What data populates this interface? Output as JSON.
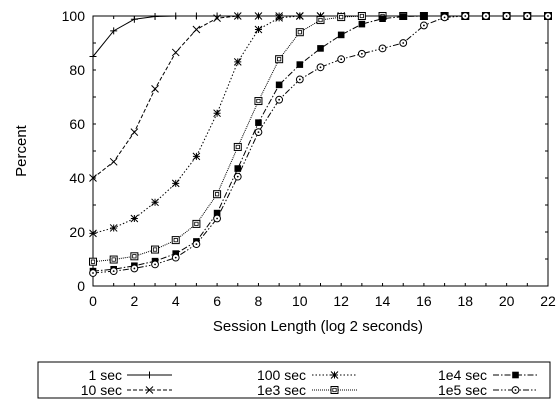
{
  "chart_data": {
    "type": "line",
    "xlabel": "Session Length (log 2 seconds)",
    "ylabel": "Percent",
    "xlim": [
      0,
      22
    ],
    "ylim": [
      0,
      100
    ],
    "x_ticks": [
      0,
      2,
      4,
      6,
      8,
      10,
      12,
      14,
      16,
      18,
      20,
      22
    ],
    "y_ticks": [
      0,
      20,
      40,
      60,
      80,
      100
    ],
    "grid": false,
    "legend_position": "bottom",
    "x": [
      0,
      1,
      2,
      3,
      4,
      5,
      6,
      7,
      8,
      9,
      10,
      11,
      12,
      13,
      14,
      15,
      16,
      17,
      18,
      19,
      20,
      21,
      22
    ],
    "series": [
      {
        "name": "1 sec",
        "marker": "plus",
        "dash": "solid",
        "values": [
          85,
          94.5,
          98.8,
          99.8,
          100,
          100,
          100,
          100,
          100,
          100,
          100,
          100,
          100,
          100,
          100,
          100,
          100,
          100,
          100,
          100,
          100,
          100,
          100
        ]
      },
      {
        "name": "10 sec",
        "marker": "cross",
        "dash": "dashed",
        "values": [
          40,
          46,
          57,
          73,
          86.5,
          95,
          99.2,
          100,
          100,
          100,
          100,
          100,
          100,
          100,
          100,
          100,
          100,
          100,
          100,
          100,
          100,
          100,
          100
        ]
      },
      {
        "name": "100 sec",
        "marker": "star",
        "dash": "dotted",
        "values": [
          19.5,
          21.5,
          25,
          31,
          38,
          48,
          64,
          83,
          95,
          99.3,
          100,
          100,
          100,
          100,
          100,
          100,
          100,
          100,
          100,
          100,
          100,
          100,
          100
        ]
      },
      {
        "name": "1e3 sec",
        "marker": "boxed-square",
        "dash": "densedot",
        "values": [
          9,
          9.8,
          11,
          13.5,
          17,
          23,
          34,
          51.5,
          68.5,
          84,
          94,
          98.5,
          99.6,
          100,
          100,
          100,
          100,
          100,
          100,
          100,
          100,
          100,
          100
        ]
      },
      {
        "name": "1e4 sec",
        "marker": "filled-square",
        "dash": "dashdot",
        "values": [
          5.5,
          6.2,
          7.5,
          9.2,
          12,
          16.5,
          27,
          43.5,
          60.5,
          74.5,
          82,
          88,
          93,
          97,
          99,
          99.8,
          100,
          100,
          100,
          100,
          100,
          100,
          100
        ]
      },
      {
        "name": "1e5 sec",
        "marker": "circle-dot",
        "dash": "dashdotdot",
        "values": [
          4.8,
          5.5,
          6.5,
          8,
          10.5,
          15.5,
          25,
          40.5,
          57,
          69,
          76.5,
          81,
          84,
          86,
          88,
          90,
          96.5,
          99.5,
          100,
          100,
          100,
          100,
          100
        ]
      }
    ]
  }
}
